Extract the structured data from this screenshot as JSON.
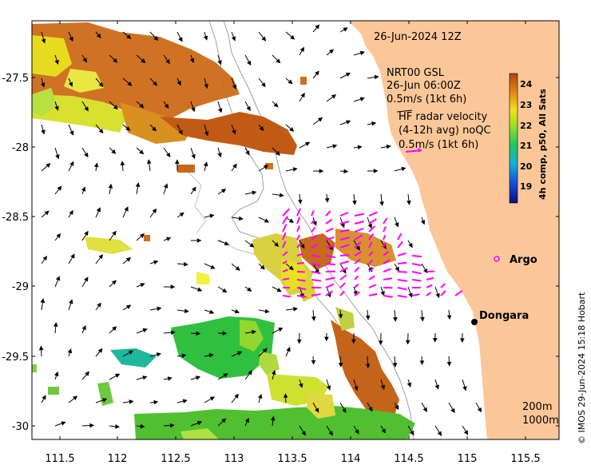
{
  "map": {
    "timestamp": "26-Jun-2024 12Z",
    "credit": "© IMOS 29-Jun-2024 15:18 Hobart",
    "colors": {
      "land": "#fbc799",
      "ocean": "#ffffff",
      "contour": "#a0a0a0",
      "radar": "#ff00ff",
      "gsl": "#000000"
    },
    "x_ticks": [
      "111.5",
      "112",
      "112.5",
      "113",
      "113.5",
      "114",
      "114.5",
      "115",
      "115.5"
    ],
    "y_ticks": [
      "-27.5",
      "-28",
      "-28.5",
      "-29",
      "-29.5",
      "-30"
    ],
    "legend": {
      "gsl_title": "NRT00 GSL",
      "gsl_time": "26-Jun 06:00Z",
      "gsl_scale": "0.5m/s (1kt 6h)",
      "radar_line1": "HF radar velocity",
      "radar_line2": "(4-12h avg) noQC",
      "radar_scale": "0.5m/s (1kt 6h)"
    },
    "colorbar": {
      "label": "4h comp, p50, All Sats",
      "ticks": [
        "24",
        "23",
        "22",
        "21",
        "20",
        "19"
      ]
    },
    "places": [
      {
        "name": "Argo",
        "icon": "circle-marker-icon"
      },
      {
        "name": "Dongara",
        "icon": "dot-marker-icon"
      }
    ],
    "depths": [
      "200m",
      "1000m"
    ]
  }
}
